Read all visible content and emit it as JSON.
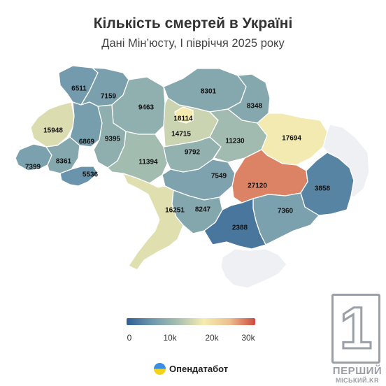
{
  "title": "Кількість смертей в Україні",
  "subtitle": "Дані Мін’юсту, І півріччя 2025 року",
  "legend": {
    "colors": [
      "#2e5f93",
      "#6f98ad",
      "#a8c0b0",
      "#f6ecb0",
      "#ecc08f",
      "#cf4a3e"
    ],
    "ticks": [
      "0",
      "10k",
      "20k",
      "30k"
    ],
    "min": 0,
    "max": 30000
  },
  "regions": [
    {
      "name": "volyn",
      "value": 6511,
      "label": "6511"
    },
    {
      "name": "rivne",
      "value": 7159,
      "label": "7159"
    },
    {
      "name": "zhytomyr",
      "value": 9463,
      "label": "9463"
    },
    {
      "name": "kyiv-oblast",
      "value": 14715,
      "label": "14715"
    },
    {
      "name": "kyiv-city",
      "value": 18114,
      "label": "18114"
    },
    {
      "name": "chernihiv",
      "value": 8301,
      "label": "8301"
    },
    {
      "name": "sumy",
      "value": 8348,
      "label": "8348"
    },
    {
      "name": "lviv",
      "value": 15948,
      "label": "15948"
    },
    {
      "name": "ternopil",
      "value": 6869,
      "label": "6869"
    },
    {
      "name": "khmelnytskyi",
      "value": 9395,
      "label": "9395"
    },
    {
      "name": "poltava",
      "value": 11230,
      "label": "11230"
    },
    {
      "name": "kharkiv",
      "value": 17694,
      "label": "17694"
    },
    {
      "name": "zakarpattia",
      "value": 7399,
      "label": "7399"
    },
    {
      "name": "ivano-frankivsk",
      "value": 8361,
      "label": "8361"
    },
    {
      "name": "chernivtsi",
      "value": 5536,
      "label": "5536"
    },
    {
      "name": "vinnytsia",
      "value": 11394,
      "label": "11394"
    },
    {
      "name": "cherkasy",
      "value": 9792,
      "label": "9792"
    },
    {
      "name": "kirovohrad",
      "value": 7549,
      "label": "7549"
    },
    {
      "name": "dnipropetrovsk",
      "value": 27120,
      "label": "27120"
    },
    {
      "name": "donetsk",
      "value": 3858,
      "label": "3858"
    },
    {
      "name": "odesa",
      "value": 16251,
      "label": "16251"
    },
    {
      "name": "mykolaiv",
      "value": 8247,
      "label": "8247"
    },
    {
      "name": "zaporizhzhia",
      "value": 7360,
      "label": "7360"
    },
    {
      "name": "kherson",
      "value": 2388,
      "label": "2388"
    },
    {
      "name": "luhansk",
      "value": null,
      "label": ""
    },
    {
      "name": "crimea",
      "value": null,
      "label": ""
    }
  ],
  "nodata_color": "#eef0f4",
  "brand": "Опендатабот",
  "badge": {
    "line1": "ПЕРШИЙ",
    "line2": "МІСЬКИЙ.KR",
    "glyph": "1"
  }
}
